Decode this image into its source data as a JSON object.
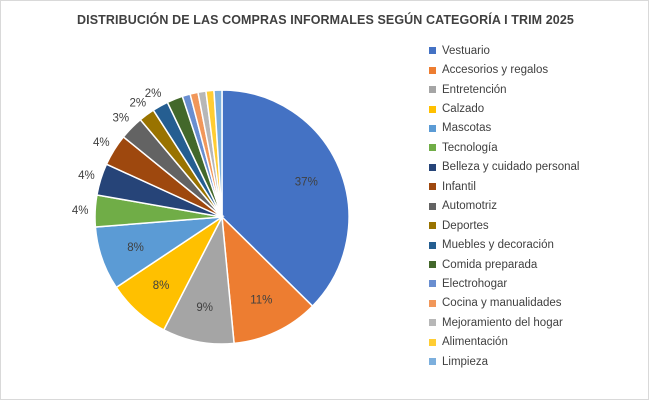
{
  "chart_data": {
    "type": "pie",
    "title": "DISTRIBUCIÓN DE LAS COMPRAS INFORMALES SEGÚN CATEGORÍA I TRIM 2025",
    "legend_position": "right",
    "slices": [
      {
        "label": "Vestuario",
        "value": 37,
        "data_label": "37%",
        "color": "#4472C4"
      },
      {
        "label": "Accesorios y regalos",
        "value": 11,
        "data_label": "11%",
        "color": "#ED7D31"
      },
      {
        "label": "Entretención",
        "value": 9,
        "data_label": "9%",
        "color": "#A5A5A5"
      },
      {
        "label": "Calzado",
        "value": 8,
        "data_label": "8%",
        "color": "#FFC000"
      },
      {
        "label": "Mascotas",
        "value": 8,
        "data_label": "8%",
        "color": "#5B9BD5"
      },
      {
        "label": "Tecnología",
        "value": 4,
        "data_label": "4%",
        "color": "#70AD47"
      },
      {
        "label": "Belleza y cuidado personal",
        "value": 4,
        "data_label": "4%",
        "color": "#264478"
      },
      {
        "label": "Infantil",
        "value": 4,
        "data_label": "4%",
        "color": "#9E480E"
      },
      {
        "label": "Automotriz",
        "value": 3,
        "data_label": "3%",
        "color": "#636363"
      },
      {
        "label": "Deportes",
        "value": 2,
        "data_label": "2%",
        "color": "#997300"
      },
      {
        "label": "Muebles y decoración",
        "value": 2,
        "data_label": "2%",
        "color": "#255E91"
      },
      {
        "label": "Comida preparada",
        "value": 2,
        "data_label": "",
        "color": "#43682B"
      },
      {
        "label": "Electrohogar",
        "value": 1,
        "data_label": "",
        "color": "#698ED0"
      },
      {
        "label": "Cocina y manualidades",
        "value": 1,
        "data_label": "",
        "color": "#F1975A"
      },
      {
        "label": "Mejoramiento del hogar",
        "value": 1,
        "data_label": "",
        "color": "#B7B7B7"
      },
      {
        "label": "Alimentación",
        "value": 1,
        "data_label": "",
        "color": "#FFCD33"
      },
      {
        "label": "Limpieza",
        "value": 1,
        "data_label": "",
        "color": "#7CAFDD"
      }
    ]
  }
}
